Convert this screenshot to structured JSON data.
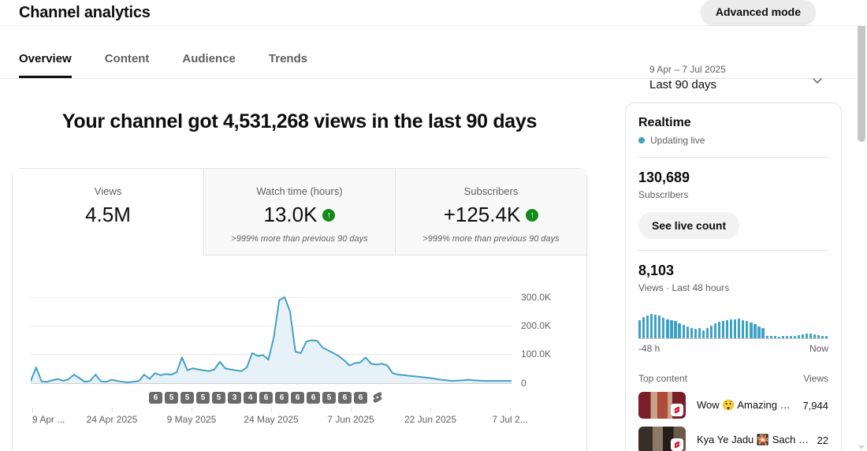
{
  "header": {
    "title": "Channel analytics",
    "advanced_mode_label": "Advanced mode"
  },
  "tabs": [
    {
      "label": "Overview",
      "active": true
    },
    {
      "label": "Content",
      "active": false
    },
    {
      "label": "Audience",
      "active": false
    },
    {
      "label": "Trends",
      "active": false
    }
  ],
  "date_picker": {
    "range": "9 Apr – 7 Jul 2025",
    "preset": "Last 90 days"
  },
  "headline": "Your channel got 4,531,268 views in the last 90 days",
  "metrics": {
    "cards": [
      {
        "label": "Views",
        "value": "4.5M",
        "active": true,
        "comparison": ""
      },
      {
        "label": "Watch time (hours)",
        "value": "13.0K",
        "trend": "up",
        "comparison": ">999% more than previous 90 days"
      },
      {
        "label": "Subscribers",
        "value": "+125.4K",
        "trend": "up",
        "comparison": ">999% more than previous 90 days"
      }
    ]
  },
  "main_chart": {
    "y_ticks": [
      "300.0K",
      "200.0K",
      "100.0K",
      "0"
    ],
    "x_ticks": [
      "9 Apr ...",
      "24 Apr 2025",
      "9 May 2025",
      "24 May 2025",
      "7 Jun 2025",
      "22 Jun 2025",
      "7 Jul 2..."
    ],
    "upload_badges": [
      "6",
      "5",
      "5",
      "5",
      "5",
      "3",
      "4",
      "6",
      "6",
      "6",
      "6",
      "5",
      "6",
      "6"
    ]
  },
  "chart_data": [
    {
      "type": "area",
      "title": "Daily views, last 90 days",
      "x_range": [
        "9 Apr 2025",
        "7 Jul 2025"
      ],
      "xlabel_ticks": [
        "9 Apr",
        "24 Apr 2025",
        "9 May 2025",
        "24 May 2025",
        "7 Jun 2025",
        "22 Jun 2025",
        "7 Jul 2025"
      ],
      "ylabel": "Views",
      "ylim": [
        0,
        310000
      ],
      "y_ticks": [
        0,
        100000,
        200000,
        300000
      ],
      "grid": true,
      "values": [
        8000,
        55000,
        6000,
        5000,
        10000,
        15000,
        8000,
        14000,
        30000,
        18000,
        5000,
        8000,
        30000,
        6000,
        5000,
        12000,
        8000,
        5000,
        3000,
        5000,
        8000,
        30000,
        15000,
        35000,
        28000,
        32000,
        30000,
        38000,
        90000,
        45000,
        52000,
        48000,
        45000,
        42000,
        48000,
        75000,
        52000,
        48000,
        45000,
        42000,
        55000,
        105000,
        95000,
        98000,
        82000,
        160000,
        290000,
        300000,
        250000,
        110000,
        105000,
        145000,
        150000,
        148000,
        125000,
        115000,
        105000,
        95000,
        80000,
        62000,
        70000,
        72000,
        90000,
        68000,
        65000,
        68000,
        62000,
        35000,
        30000,
        28000,
        26000,
        24000,
        22000,
        20000,
        18000,
        15000,
        12000,
        10000,
        8000,
        9000,
        10000,
        12000,
        10000,
        9000,
        8000,
        8000,
        8000,
        8000,
        8000,
        8000
      ]
    },
    {
      "type": "bar",
      "title": "Views · Last 48 hours",
      "x_range": [
        "-48 h",
        "Now"
      ],
      "values_unit": "relative bar height (%)",
      "values": [
        55,
        65,
        70,
        75,
        72,
        68,
        62,
        58,
        55,
        52,
        45,
        40,
        35,
        30,
        28,
        32,
        25,
        30,
        38,
        45,
        50,
        52,
        55,
        57,
        58,
        60,
        55,
        52,
        48,
        42,
        36,
        30,
        8,
        6,
        6,
        5,
        6,
        6,
        7,
        8,
        10,
        12,
        14,
        15,
        13,
        10,
        8,
        6
      ]
    }
  ],
  "realtime": {
    "title": "Realtime",
    "status": "Updating live",
    "subscribers_value": "130,689",
    "subscribers_label": "Subscribers",
    "live_count_button": "See live count",
    "views_value": "8,103",
    "views_label": "Views · Last 48 hours",
    "axis_left": "-48 h",
    "axis_right": "Now"
  },
  "top_content": {
    "title": "Top content",
    "views_header": "Views",
    "items": [
      {
        "title": "Wow 😲 Amazing …",
        "views": "7,944"
      },
      {
        "title": "Kya Ye Jadu 🎇 Sach …",
        "views": "22"
      }
    ]
  },
  "icons": {
    "up_arrow": "↑"
  },
  "colors": {
    "accent_line": "#44a0c4",
    "area_fill": "#e7f2f8",
    "positive_green": "#128a19",
    "live_dot": "#3ea2c4"
  }
}
